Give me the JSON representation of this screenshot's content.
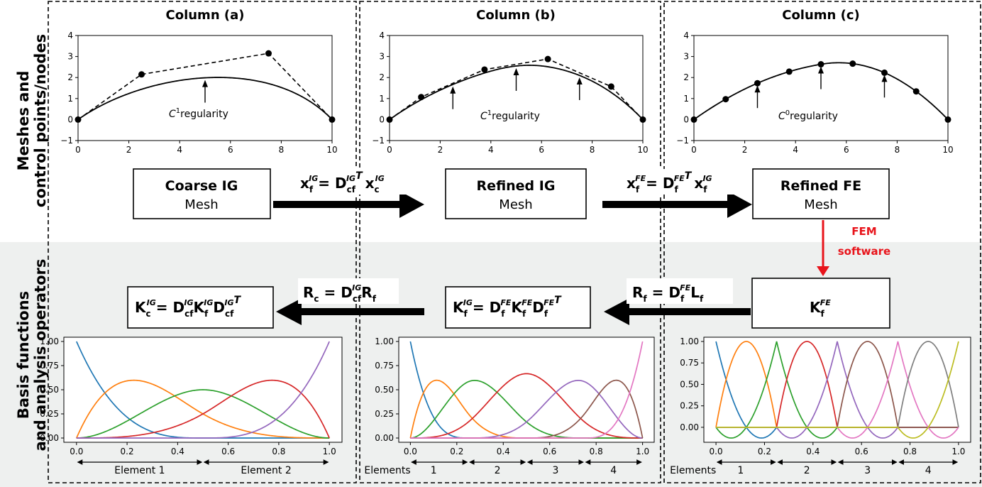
{
  "row_labels": {
    "top_line1": "Meshes and",
    "top_line2": "control points/nodes",
    "bottom_line1": "Basis functions",
    "bottom_line2": "and analysis operators"
  },
  "columns": {
    "a": "Column (a)",
    "b": "Column (b)",
    "c": "Column (c)"
  },
  "regularity": {
    "a": "regularity",
    "b": "regularity",
    "c": "regularity",
    "a_sup": "1",
    "b_sup": "1",
    "c_sup": "0",
    "letter": "C"
  },
  "boxes": {
    "coarse_ig_title": "Coarse IG",
    "coarse_ig_sub": "Mesh",
    "refined_ig_title": "Refined IG",
    "refined_ig_sub": "Mesh",
    "refined_fe_title": "Refined FE",
    "refined_fe_sub": "Mesh",
    "kfe_base": "K",
    "kfe_sub": "f",
    "kfe_sup": "FE"
  },
  "fem_software": {
    "line1": "FEM",
    "line2": "software"
  },
  "colors": {
    "fem_arrow": "#e8141b",
    "lower_band": "#eef0ef",
    "basis": [
      "#1f77b4",
      "#ff7f0e",
      "#2ca02c",
      "#d62728",
      "#9467bd",
      "#8c564b",
      "#e377c2",
      "#7f7f7f",
      "#bcbd22"
    ]
  },
  "elements": {
    "a": [
      "Element 1",
      "Element 2"
    ],
    "b_prefix": "Elements",
    "b": [
      "1",
      "2",
      "3",
      "4"
    ],
    "c_prefix": "Elements",
    "c": [
      "1",
      "2",
      "3",
      "4"
    ]
  },
  "chart_data": [
    {
      "type": "line",
      "panel": "a",
      "series": [
        {
          "control_points_x": [
            0,
            2.5,
            7.5,
            10
          ],
          "control_points_y": [
            0,
            2.15,
            3.15,
            0
          ]
        }
      ],
      "arrows_x": [
        5
      ],
      "xlim": [
        0,
        10
      ],
      "ylim": [
        -1,
        4
      ],
      "xticks": [
        0,
        2,
        4,
        6,
        8,
        10
      ],
      "yticks": [
        -1,
        0,
        1,
        2,
        3,
        4
      ]
    },
    {
      "type": "line",
      "panel": "b",
      "series": [
        {
          "control_points_x": [
            0,
            1.25,
            3.75,
            6.25,
            8.75,
            10
          ],
          "control_points_y": [
            0,
            1.07,
            2.38,
            2.88,
            1.57,
            0
          ]
        }
      ],
      "arrows_x": [
        2.5,
        5,
        7.5
      ],
      "xlim": [
        0,
        10
      ],
      "ylim": [
        -1,
        4
      ],
      "xticks": [
        0,
        2,
        4,
        6,
        8,
        10
      ],
      "yticks": [
        -1,
        0,
        1,
        2,
        3,
        4
      ]
    },
    {
      "type": "line",
      "panel": "c",
      "series": [
        {
          "nodes_x": [
            0,
            1.25,
            2.5,
            3.75,
            5,
            6.25,
            7.5,
            8.75,
            10
          ],
          "nodes_y": [
            0,
            0.97,
            1.73,
            2.28,
            2.63,
            2.66,
            2.23,
            1.34,
            0
          ]
        }
      ],
      "arrows_x": [
        2.5,
        5,
        7.5
      ],
      "xlim": [
        0,
        10
      ],
      "ylim": [
        -1,
        4
      ],
      "xticks": [
        0,
        2,
        4,
        6,
        8,
        10
      ],
      "yticks": [
        -1,
        0,
        1,
        2,
        3,
        4
      ]
    },
    {
      "type": "line",
      "panel": "a-basis",
      "knots": [
        0,
        0,
        0,
        0,
        0.5,
        1,
        1,
        1,
        1
      ],
      "degree": 3,
      "xlim": [
        0,
        1
      ],
      "ylim": [
        0,
        1
      ],
      "xticks": [
        "0.0",
        "0.2",
        "0.4",
        "0.6",
        "0.8",
        "1.0"
      ],
      "yticks": [
        "0.00",
        "0.25",
        "0.50",
        "0.75",
        "1.00"
      ]
    },
    {
      "type": "line",
      "panel": "b-basis",
      "knots": [
        0,
        0,
        0,
        0,
        0.25,
        0.5,
        0.75,
        1,
        1,
        1,
        1
      ],
      "degree": 3,
      "xlim": [
        0,
        1
      ],
      "ylim": [
        0,
        1
      ],
      "xticks": [
        "0.0",
        "0.2",
        "0.4",
        "0.6",
        "0.8",
        "1.0"
      ],
      "yticks": [
        "0.00",
        "0.25",
        "0.50",
        "0.75",
        "1.00"
      ]
    },
    {
      "type": "line",
      "panel": "c-basis",
      "elements": [
        [
          0,
          0.25
        ],
        [
          0.25,
          0.5
        ],
        [
          0.5,
          0.75
        ],
        [
          0.75,
          1
        ]
      ],
      "degree": 2,
      "xlim": [
        0,
        1
      ],
      "ylim": [
        -0.125,
        1
      ],
      "xticks": [
        "0.0",
        "0.2",
        "0.4",
        "0.6",
        "0.8",
        "1.0"
      ],
      "yticks": [
        "0.00",
        "0.25",
        "0.50",
        "0.75",
        "1.00"
      ]
    }
  ]
}
